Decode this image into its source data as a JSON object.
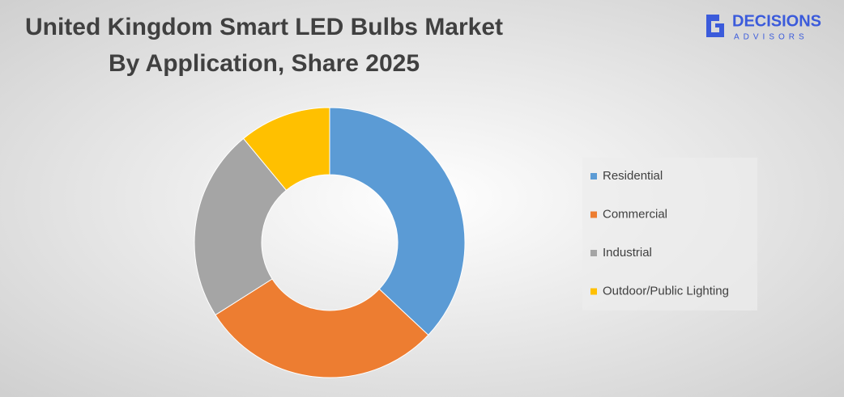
{
  "chart_data": {
    "type": "donut",
    "title": "United Kingdom Smart LED Bulbs Market",
    "subtitle": "By Application, Share 2025",
    "categories": [
      "Residential",
      "Commercial",
      "Industrial",
      "Outdoor/Public Lighting"
    ],
    "values": [
      37,
      29,
      23,
      11
    ],
    "colors": [
      "#5b9bd5",
      "#ed7d31",
      "#a5a5a5",
      "#ffc000"
    ],
    "legend": "right"
  },
  "logo": {
    "name": "DECISIONS",
    "tagline": "ADVISORS"
  }
}
